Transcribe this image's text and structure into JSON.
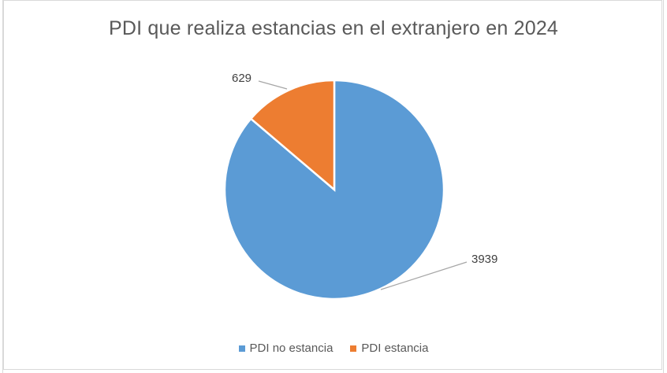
{
  "chart_data": {
    "type": "pie",
    "title": "PDI que realiza estancias en el extranjero en 2024",
    "categories": [
      "PDI no estancia",
      "PDI estancia"
    ],
    "values": [
      3939,
      629
    ],
    "colors": [
      "#5b9bd5",
      "#ed7d31"
    ],
    "data_labels": [
      "3939",
      "629"
    ],
    "legend_position": "bottom",
    "start_angle_deg": 0,
    "direction": "clockwise"
  }
}
